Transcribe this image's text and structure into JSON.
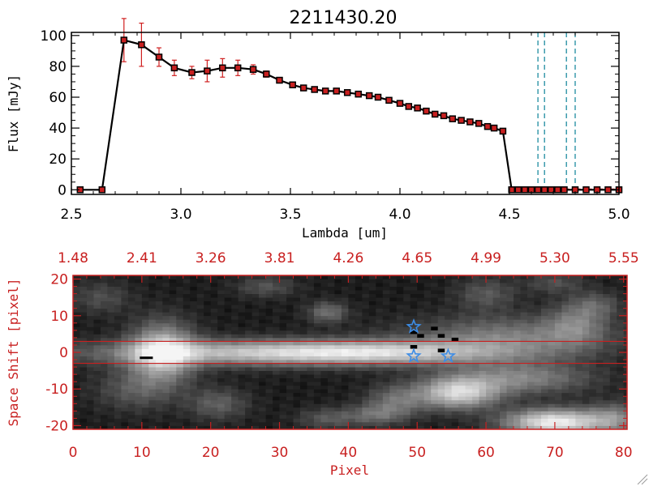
{
  "chart_data": [
    {
      "type": "line",
      "title": "2211430.20",
      "xlabel": "Lambda [um]",
      "ylabel": "Flux [mJy]",
      "xlim": [
        2.5,
        5.0
      ],
      "ylim": [
        -3,
        102
      ],
      "xticks": [
        2.5,
        3.0,
        3.5,
        4.0,
        4.5,
        5.0
      ],
      "xtick_labels": [
        "2.5",
        "3.0",
        "3.5",
        "4.0",
        "4.5",
        "5.0"
      ],
      "yticks": [
        0,
        20,
        40,
        60,
        80,
        100
      ],
      "ytick_labels": [
        "0",
        "20",
        "40",
        "60",
        "80",
        "100"
      ],
      "colors": {
        "line": "#000000",
        "marker": "#c82020",
        "errorbar": "#d02020",
        "guides": "#1e8ca0"
      },
      "series": [
        {
          "x": [
            2.54,
            2.64,
            2.74,
            2.82,
            2.9,
            2.97,
            3.05,
            3.12,
            3.19,
            3.26,
            3.33,
            3.39,
            3.45,
            3.51,
            3.56,
            3.61,
            3.66,
            3.71,
            3.76,
            3.81,
            3.86,
            3.9,
            3.95,
            4.0,
            4.04,
            4.08,
            4.12,
            4.16,
            4.2,
            4.24,
            4.28,
            4.32,
            4.36,
            4.4,
            4.43,
            4.47,
            4.51,
            4.54,
            4.57,
            4.6,
            4.63,
            4.66,
            4.69,
            4.72,
            4.75,
            4.8,
            4.85,
            4.9,
            4.95,
            5.0
          ],
          "y": [
            0,
            0,
            97,
            94,
            86,
            79,
            76,
            77,
            79,
            79,
            78,
            75,
            71,
            68,
            66,
            65,
            64,
            64,
            63,
            62,
            61,
            60,
            58,
            56,
            54,
            53,
            51,
            49,
            48,
            46,
            45,
            44,
            43,
            41,
            40,
            38,
            0,
            0,
            0,
            0,
            0,
            0,
            0,
            0,
            0,
            0,
            0,
            0,
            0,
            0
          ],
          "err": [
            0,
            0,
            14,
            14,
            6,
            5,
            4,
            7,
            6,
            5,
            3,
            2,
            1,
            1,
            1,
            1,
            1,
            1,
            1,
            1,
            1,
            1,
            1,
            1,
            1,
            1,
            1,
            1,
            1,
            1,
            1,
            1,
            1,
            1,
            1,
            1,
            0,
            0,
            0,
            0,
            0,
            0,
            0,
            0,
            0,
            0,
            0,
            0,
            0,
            0
          ]
        }
      ],
      "guides_x": [
        4.63,
        4.66,
        4.76,
        4.8
      ]
    },
    {
      "type": "heatmap",
      "xlabel": "Pixel",
      "ylabel": "Space Shift [pixel]",
      "xlim": [
        0,
        80.5
      ],
      "ylim": [
        -21,
        21
      ],
      "xticks": [
        0,
        10,
        20,
        30,
        40,
        50,
        60,
        70,
        80
      ],
      "xtick_labels": [
        "0",
        "10",
        "20",
        "30",
        "40",
        "50",
        "60",
        "70",
        "80"
      ],
      "yticks": [
        -20,
        -10,
        0,
        10,
        20
      ],
      "ytick_labels": [
        "-20",
        "-10",
        "0",
        "10",
        "20"
      ],
      "top_axis_tick_labels": [
        "1.48",
        "2.41",
        "3.26",
        "3.81",
        "4.26",
        "4.65",
        "4.99",
        "5.30",
        "5.55"
      ],
      "colors": {
        "axis": "#c82020",
        "star": "#3c8ce6",
        "boundary": "#c82020"
      },
      "boundary_lines": [
        3,
        -3
      ],
      "blobs": [
        {
          "x": 13,
          "y": 0,
          "sx": 3.2,
          "sy": 5.5,
          "v": 0.7
        },
        {
          "x": 28,
          "y": 0,
          "sx": 18,
          "sy": 2.4,
          "v": 0.62
        },
        {
          "x": 45,
          "y": 0,
          "sx": 12,
          "sy": 2.2,
          "v": 0.42
        },
        {
          "x": 63,
          "y": 4,
          "sx": 10,
          "sy": 4,
          "v": 0.38
        },
        {
          "x": 73,
          "y": 8,
          "sx": 3,
          "sy": 4,
          "v": 0.3
        },
        {
          "x": 56,
          "y": -11,
          "sx": 4,
          "sy": 3,
          "v": 0.75
        },
        {
          "x": 65,
          "y": -7,
          "sx": 7,
          "sy": 3,
          "v": 0.4
        },
        {
          "x": 70,
          "y": -19,
          "sx": 5,
          "sy": 2.5,
          "v": 0.9
        },
        {
          "x": 79,
          "y": -18,
          "sx": 3,
          "sy": 3,
          "v": 0.35
        },
        {
          "x": 37,
          "y": 11,
          "sx": 2,
          "sy": 2,
          "v": 0.32
        },
        {
          "x": 47,
          "y": -13,
          "sx": 3,
          "sy": 3,
          "v": 0.3
        },
        {
          "x": 44,
          "y": -17,
          "sx": 3,
          "sy": 2,
          "v": 0.28
        },
        {
          "x": 37,
          "y": -18,
          "sx": 3,
          "sy": 2,
          "v": 0.22
        },
        {
          "x": 21,
          "y": -14,
          "sx": 3,
          "sy": 3,
          "v": 0.25
        },
        {
          "x": 9,
          "y": -10,
          "sx": 4,
          "sy": 4,
          "v": 0.22
        },
        {
          "x": 28,
          "y": 18,
          "sx": 3,
          "sy": 2,
          "v": 0.2
        },
        {
          "x": 60,
          "y": 16,
          "sx": 3,
          "sy": 3,
          "v": 0.22
        },
        {
          "x": 70,
          "y": 19,
          "sx": 3,
          "sy": 2,
          "v": 0.18
        },
        {
          "x": 76,
          "y": 13,
          "sx": 2.5,
          "sy": 2.5,
          "v": 0.22
        },
        {
          "x": 4,
          "y": 15,
          "sx": 3,
          "sy": 3,
          "v": 0.18
        }
      ],
      "stars": [
        {
          "x": 49.5,
          "y": 7
        },
        {
          "x": 49.5,
          "y": -1
        },
        {
          "x": 54.5,
          "y": -1
        }
      ],
      "dark_pixels": [
        {
          "x": 49,
          "y": 5
        },
        {
          "x": 50,
          "y": 4
        },
        {
          "x": 52,
          "y": 6
        },
        {
          "x": 53,
          "y": 4
        },
        {
          "x": 55,
          "y": 3
        },
        {
          "x": 49,
          "y": 1
        },
        {
          "x": 53,
          "y": 0
        }
      ],
      "marker_line": {
        "x1": 9.7,
        "x2": 11.6,
        "y": -1.5
      }
    }
  ]
}
